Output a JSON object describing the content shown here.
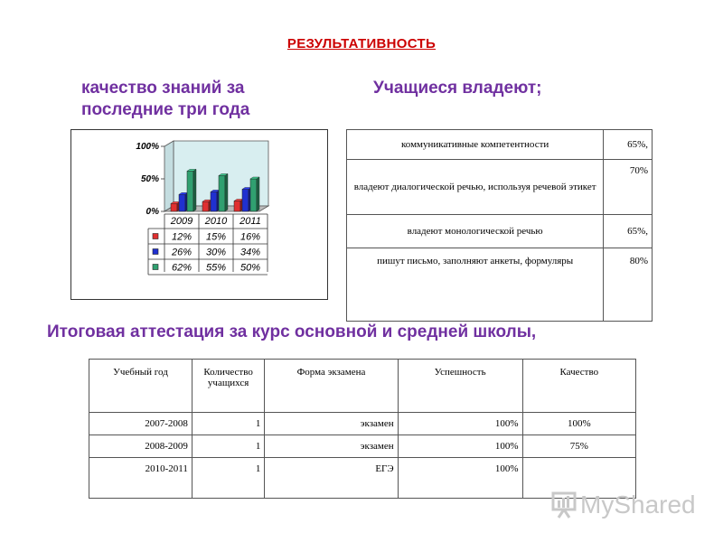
{
  "title": "РЕЗУЛЬТАТИВНОСТЬ",
  "left_heading": "качество знаний за последние три года",
  "right_heading": "Учащиеся владеют;",
  "final_heading": "Итоговая  аттестация за курс основной и средней школы,",
  "chart_data": {
    "type": "bar",
    "categories": [
      "2009",
      "2010",
      "2011"
    ],
    "series": [
      {
        "name": "",
        "color": "#e03030",
        "values": [
          12,
          15,
          16
        ],
        "labels": [
          "12%",
          "15%",
          "16%"
        ]
      },
      {
        "name": "",
        "color": "#2030d0",
        "values": [
          26,
          30,
          34
        ],
        "labels": [
          "26%",
          "30%",
          "34%"
        ]
      },
      {
        "name": "",
        "color": "#30a070",
        "values": [
          62,
          55,
          50
        ],
        "labels": [
          "62%",
          "55%",
          "50%"
        ]
      }
    ],
    "yticks": [
      "0%",
      "50%",
      "100%"
    ],
    "ylim": [
      0,
      100
    ],
    "legend": "data-table-below",
    "grid": false
  },
  "competencies": [
    {
      "text": "коммуникативные  компетентности",
      "value": "65%,"
    },
    {
      "text": "владеют диалогической речью, используя речевой этикет",
      "value": "70%"
    },
    {
      "text": "владеют монологической речью",
      "value": "65%,"
    },
    {
      "text": "пишут письмо, заполняют анкеты, формуляры",
      "value": "80%"
    }
  ],
  "exam_table": {
    "headers": [
      "Учебный год",
      "Количество учащихся",
      "Форма экзамена",
      "Успешность",
      "Качество"
    ],
    "rows": [
      [
        "2007-2008",
        "1",
        "экзамен",
        "100%",
        "100%"
      ],
      [
        "2008-2009",
        "1",
        "экзамен",
        "100%",
        "75%"
      ],
      [
        "2010-2011",
        "1",
        "ЕГЭ",
        "100%",
        ""
      ]
    ]
  },
  "logo": {
    "text": "MyShared",
    "icon": "presentation-board-icon",
    "color": "#c8c8c8"
  }
}
